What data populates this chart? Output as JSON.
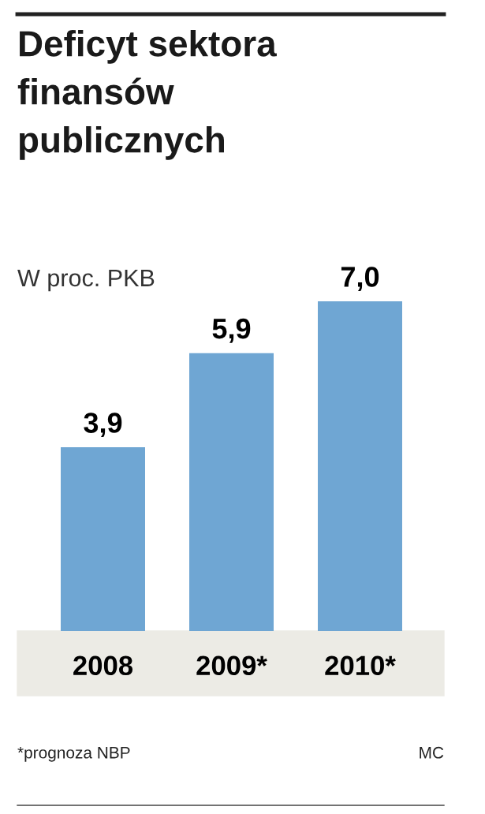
{
  "chart_data": {
    "type": "bar",
    "title": "Deficyt sektora\nfinansów\npublicznych",
    "subtitle": "W proc. PKB",
    "categories": [
      "2008",
      "2009*",
      "2010*"
    ],
    "values": [
      3.9,
      5.9,
      7.0
    ],
    "value_labels": [
      "3,9",
      "5,9",
      "7,0"
    ],
    "color": "#6fa6d3",
    "annotations": [
      "*prognoza NBP",
      "MC"
    ]
  }
}
